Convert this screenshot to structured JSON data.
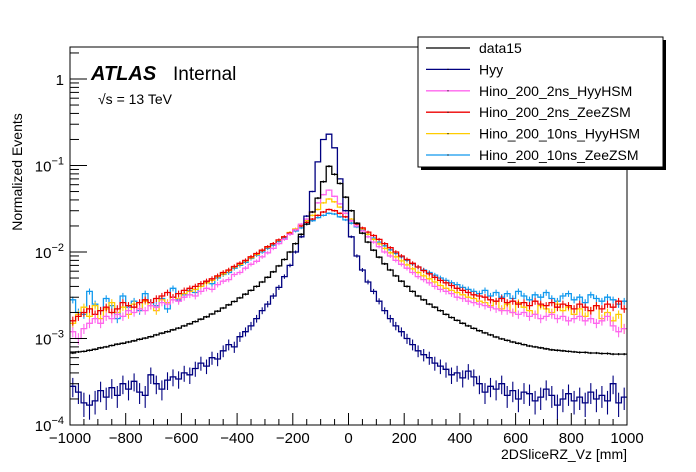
{
  "chart_data": {
    "type": "line",
    "style": "step-histogram-with-error-bars",
    "title": "",
    "xlabel": "2DSliceRZ_Vz [mm]",
    "ylabel": "Normalized Events",
    "xlim": [
      -1000,
      1000
    ],
    "ylim": [
      0.0001,
      2.3
    ],
    "yscale": "log",
    "grid": false,
    "x_ticks": [
      -1000,
      -800,
      -600,
      -400,
      -200,
      0,
      200,
      400,
      600,
      800,
      1000
    ],
    "x_tick_labels": [
      "−1000",
      "−800",
      "−600",
      "−400",
      "−200",
      "0",
      "200",
      "400",
      "600",
      "800",
      "1000"
    ],
    "y_ticks": [
      0.0001,
      0.001,
      0.01,
      0.1,
      1
    ],
    "y_tick_labels": [
      {
        "base": "10",
        "exp": "−4"
      },
      {
        "base": "10",
        "exp": "−3"
      },
      {
        "base": "10",
        "exp": "−2"
      },
      {
        "base": "10",
        "exp": "−1"
      },
      {
        "base": "1",
        "exp": ""
      }
    ],
    "annotations": {
      "atlas": "ATLAS",
      "internal": "Internal",
      "energy": "√s = 13 TeV"
    },
    "legend_position": "top-right",
    "bin_edges_start": -1000,
    "bin_width": 20,
    "series": [
      {
        "name": "data15",
        "color": "#000000",
        "values": [
          0.00068,
          0.0007,
          0.00071,
          0.00073,
          0.00075,
          0.00078,
          0.0008,
          0.00083,
          0.00086,
          0.00088,
          0.00091,
          0.00094,
          0.00098,
          0.00101,
          0.00105,
          0.0011,
          0.00115,
          0.0012,
          0.00126,
          0.00132,
          0.0014,
          0.00148,
          0.00157,
          0.00167,
          0.00178,
          0.00192,
          0.00207,
          0.00225,
          0.00245,
          0.00268,
          0.00295,
          0.00325,
          0.0036,
          0.004,
          0.0045,
          0.0051,
          0.0059,
          0.0069,
          0.0082,
          0.01,
          0.0125,
          0.016,
          0.021,
          0.029,
          0.042,
          0.065,
          0.098,
          0.079,
          0.062,
          0.043,
          0.03,
          0.0215,
          0.0165,
          0.013,
          0.0105,
          0.0087,
          0.0073,
          0.0062,
          0.0053,
          0.0046,
          0.004,
          0.0035,
          0.0031,
          0.0028,
          0.0025,
          0.0023,
          0.0021,
          0.0019,
          0.00175,
          0.00162,
          0.0015,
          0.0014,
          0.00131,
          0.00123,
          0.00116,
          0.0011,
          0.00104,
          0.00099,
          0.00095,
          0.00091,
          0.00088,
          0.00085,
          0.00082,
          0.0008,
          0.00078,
          0.00076,
          0.00074,
          0.00073,
          0.00072,
          0.00071,
          0.0007,
          0.00069,
          0.00069,
          0.00068,
          0.00068,
          0.00067,
          0.00067,
          0.00066,
          0.00066,
          0.00066
        ]
      },
      {
        "name": "Hyy",
        "color": "#000080",
        "values": [
          0.00028,
          0.00024,
          0.00018,
          0.00017,
          0.00019,
          0.00025,
          0.00021,
          0.00027,
          0.00022,
          0.0003,
          0.00026,
          0.00032,
          0.00024,
          0.00022,
          0.00038,
          0.0003,
          0.00026,
          0.00033,
          0.00036,
          0.00034,
          0.0004,
          0.00038,
          0.00045,
          0.00052,
          0.00048,
          0.0006,
          0.00058,
          0.00072,
          0.00085,
          0.0008,
          0.00105,
          0.0012,
          0.0014,
          0.0017,
          0.0021,
          0.0025,
          0.0031,
          0.0039,
          0.0052,
          0.007,
          0.01,
          0.015,
          0.026,
          0.05,
          0.11,
          0.2,
          0.23,
          0.16,
          0.07,
          0.03,
          0.015,
          0.009,
          0.0062,
          0.0045,
          0.0035,
          0.0027,
          0.0021,
          0.0017,
          0.0014,
          0.0012,
          0.001,
          0.00085,
          0.00072,
          0.00065,
          0.0006,
          0.00052,
          0.00048,
          0.00044,
          0.00038,
          0.0004,
          0.00035,
          0.00042,
          0.00036,
          0.0003,
          0.00024,
          0.00028,
          0.00026,
          0.0003,
          0.00022,
          0.00025,
          0.0002,
          0.00024,
          0.00023,
          0.00019,
          0.00021,
          0.00026,
          0.00022,
          0.00017,
          0.0002,
          0.00023,
          0.00019,
          0.00021,
          0.00018,
          0.00024,
          0.0002,
          0.00022,
          0.00019,
          0.0003,
          0.00018,
          0.00021
        ]
      },
      {
        "name": "Hino_200_2ns_HyyHSM",
        "color": "#ff66ee",
        "values": [
          0.0012,
          0.001,
          0.0013,
          0.0015,
          0.0017,
          0.0015,
          0.0018,
          0.0017,
          0.0019,
          0.0018,
          0.0021,
          0.002,
          0.0022,
          0.0021,
          0.0024,
          0.0023,
          0.0026,
          0.0025,
          0.0028,
          0.0027,
          0.003,
          0.0032,
          0.0031,
          0.0035,
          0.0038,
          0.0037,
          0.0042,
          0.0046,
          0.0048,
          0.0055,
          0.0058,
          0.0065,
          0.0072,
          0.0078,
          0.0088,
          0.0098,
          0.011,
          0.0125,
          0.014,
          0.016,
          0.018,
          0.021,
          0.024,
          0.029,
          0.037,
          0.046,
          0.052,
          0.044,
          0.036,
          0.028,
          0.023,
          0.02,
          0.0175,
          0.015,
          0.013,
          0.0115,
          0.01,
          0.009,
          0.008,
          0.0072,
          0.0065,
          0.0058,
          0.0052,
          0.0048,
          0.0044,
          0.004,
          0.0037,
          0.0035,
          0.0033,
          0.003,
          0.0029,
          0.0027,
          0.0026,
          0.0025,
          0.0024,
          0.0023,
          0.0022,
          0.0021,
          0.0021,
          0.002,
          0.0019,
          0.002,
          0.0018,
          0.0019,
          0.0017,
          0.0018,
          0.0019,
          0.0017,
          0.0018,
          0.0016,
          0.0017,
          0.0018,
          0.0016,
          0.0017,
          0.0015,
          0.0016,
          0.0018,
          0.0014,
          0.0012,
          0.0013
        ]
      },
      {
        "name": "Hino_200_2ns_ZeeZSM",
        "color": "#ee0000",
        "values": [
          0.0016,
          0.0018,
          0.002,
          0.0022,
          0.0019,
          0.0021,
          0.0023,
          0.002,
          0.0022,
          0.0026,
          0.0024,
          0.0023,
          0.0026,
          0.0028,
          0.0026,
          0.0029,
          0.0031,
          0.0034,
          0.003,
          0.0033,
          0.0036,
          0.0038,
          0.004,
          0.0043,
          0.0046,
          0.0049,
          0.0053,
          0.0058,
          0.0062,
          0.0068,
          0.0074,
          0.008,
          0.0088,
          0.0096,
          0.0105,
          0.0115,
          0.0125,
          0.0138,
          0.015,
          0.0165,
          0.018,
          0.02,
          0.022,
          0.024,
          0.0265,
          0.029,
          0.031,
          0.03,
          0.028,
          0.0255,
          0.023,
          0.021,
          0.019,
          0.017,
          0.0155,
          0.014,
          0.0125,
          0.0112,
          0.01,
          0.009,
          0.0082,
          0.0074,
          0.0067,
          0.0061,
          0.0056,
          0.0051,
          0.0047,
          0.0044,
          0.0041,
          0.0038,
          0.0036,
          0.0034,
          0.0032,
          0.0031,
          0.003,
          0.0028,
          0.0027,
          0.0029,
          0.0026,
          0.0027,
          0.0025,
          0.0026,
          0.0024,
          0.0027,
          0.0025,
          0.0024,
          0.0026,
          0.0023,
          0.0025,
          0.0024,
          0.0022,
          0.0025,
          0.0023,
          0.0021,
          0.0024,
          0.0022,
          0.0025,
          0.0023,
          0.0027,
          0.0022
        ]
      },
      {
        "name": "Hino_200_10ns_HyyHSM",
        "color": "#ffcc00",
        "values": [
          0.0015,
          0.0019,
          0.0023,
          0.0018,
          0.0024,
          0.0017,
          0.0022,
          0.0026,
          0.002,
          0.0023,
          0.0019,
          0.0025,
          0.0022,
          0.0027,
          0.0024,
          0.0021,
          0.0028,
          0.0026,
          0.003,
          0.0029,
          0.0033,
          0.0035,
          0.0037,
          0.004,
          0.0044,
          0.0047,
          0.0052,
          0.0056,
          0.0061,
          0.0067,
          0.0072,
          0.0079,
          0.0086,
          0.0094,
          0.0104,
          0.0114,
          0.0125,
          0.0137,
          0.015,
          0.0168,
          0.0185,
          0.0205,
          0.023,
          0.0265,
          0.031,
          0.037,
          0.041,
          0.038,
          0.033,
          0.028,
          0.024,
          0.021,
          0.0185,
          0.016,
          0.014,
          0.0124,
          0.011,
          0.0098,
          0.0088,
          0.0079,
          0.0071,
          0.0064,
          0.0058,
          0.0053,
          0.0049,
          0.0045,
          0.0041,
          0.0038,
          0.0036,
          0.0034,
          0.0032,
          0.003,
          0.0029,
          0.0027,
          0.0026,
          0.0024,
          0.0027,
          0.0022,
          0.0025,
          0.002,
          0.0026,
          0.0023,
          0.0021,
          0.0019,
          0.0024,
          0.0022,
          0.002,
          0.0025,
          0.0021,
          0.0023,
          0.0019,
          0.0022,
          0.0018,
          0.0021,
          0.0024,
          0.0017,
          0.002,
          0.0016,
          0.0019,
          0.0013
        ]
      },
      {
        "name": "Hino_200_10ns_ZeeZSM",
        "color": "#1199ee",
        "values": [
          0.0028,
          0.002,
          0.0019,
          0.0035,
          0.0025,
          0.0021,
          0.0029,
          0.0024,
          0.0017,
          0.0031,
          0.0023,
          0.0027,
          0.0021,
          0.0033,
          0.0026,
          0.0024,
          0.0029,
          0.0022,
          0.0038,
          0.0028,
          0.0032,
          0.0036,
          0.0034,
          0.004,
          0.0045,
          0.0043,
          0.005,
          0.0055,
          0.0058,
          0.0065,
          0.007,
          0.0076,
          0.0084,
          0.0092,
          0.01,
          0.011,
          0.012,
          0.0132,
          0.0145,
          0.016,
          0.0175,
          0.019,
          0.021,
          0.023,
          0.025,
          0.0265,
          0.028,
          0.0275,
          0.0255,
          0.0235,
          0.0215,
          0.0195,
          0.0178,
          0.016,
          0.0145,
          0.013,
          0.0118,
          0.0106,
          0.0096,
          0.0088,
          0.008,
          0.0073,
          0.0067,
          0.0062,
          0.0058,
          0.0054,
          0.005,
          0.0047,
          0.0044,
          0.0042,
          0.0039,
          0.0037,
          0.0035,
          0.0033,
          0.0036,
          0.0031,
          0.0034,
          0.003,
          0.0033,
          0.0029,
          0.0035,
          0.0031,
          0.0028,
          0.0032,
          0.003,
          0.0034,
          0.0029,
          0.0027,
          0.0031,
          0.0033,
          0.0028,
          0.003,
          0.0026,
          0.0032,
          0.0029,
          0.0027,
          0.003,
          0.0028,
          0.0025,
          0.0027
        ]
      }
    ]
  }
}
